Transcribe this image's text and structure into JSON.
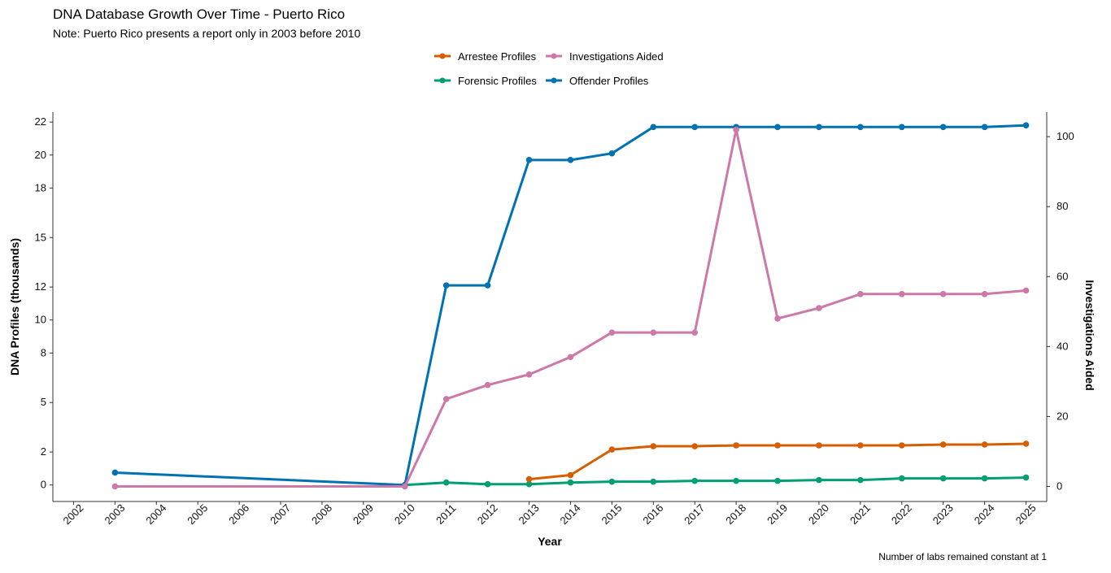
{
  "chart_data": {
    "type": "line",
    "title": "DNA Database Growth Over Time - Puerto Rico",
    "subtitle": "Note: Puerto Rico presents a report only in 2003 before 2010",
    "xlabel": "Year",
    "ylabel_left": "DNA Profiles (thousands)",
    "ylabel_right": "Investigations Aided",
    "caption": "Number of labs remained constant at 1",
    "x_ticks": [
      "2002",
      "2003",
      "2004",
      "2005",
      "2006",
      "2007",
      "2008",
      "2009",
      "2010",
      "2011",
      "2012",
      "2013",
      "2014",
      "2015",
      "2016",
      "2017",
      "2018",
      "2019",
      "2020",
      "2021",
      "2022",
      "2023",
      "2024",
      "2025"
    ],
    "y_left_ticks": [
      0,
      2,
      5,
      8,
      10,
      12,
      15,
      18,
      20,
      22
    ],
    "y_left_range": [
      -1.0,
      22.6
    ],
    "y_right_ticks": [
      0,
      20,
      40,
      60,
      80,
      100
    ],
    "y_right_range": [
      -4.3,
      107.0
    ],
    "legend_position": "top",
    "series": [
      {
        "name": "Arrestee Profiles",
        "axis": "left",
        "color": "#D55E00",
        "x": [
          2013,
          2014,
          2015,
          2016,
          2017,
          2018,
          2019,
          2020,
          2021,
          2022,
          2023,
          2024,
          2025
        ],
        "values": [
          0.35,
          0.6,
          2.15,
          2.35,
          2.35,
          2.4,
          2.4,
          2.4,
          2.4,
          2.4,
          2.45,
          2.45,
          2.5
        ]
      },
      {
        "name": "Forensic Profiles",
        "axis": "left",
        "color": "#009E73",
        "x": [
          2010,
          2011,
          2012,
          2013,
          2014,
          2015,
          2016,
          2017,
          2018,
          2019,
          2020,
          2021,
          2022,
          2023,
          2024,
          2025
        ],
        "values": [
          0.0,
          0.15,
          0.05,
          0.05,
          0.15,
          0.2,
          0.2,
          0.25,
          0.25,
          0.25,
          0.3,
          0.3,
          0.4,
          0.4,
          0.4,
          0.45
        ]
      },
      {
        "name": "Offender Profiles",
        "axis": "left",
        "color": "#0072B2",
        "x": [
          2003,
          2010,
          2011,
          2012,
          2013,
          2014,
          2015,
          2016,
          2017,
          2018,
          2019,
          2020,
          2021,
          2022,
          2023,
          2024,
          2025
        ],
        "values": [
          0.75,
          0.0,
          12.1,
          12.1,
          19.7,
          19.7,
          20.1,
          21.7,
          21.7,
          21.7,
          21.7,
          21.7,
          21.7,
          21.7,
          21.7,
          21.7,
          21.8
        ]
      },
      {
        "name": "Investigations Aided",
        "axis": "right",
        "color": "#CC79A7",
        "x": [
          2003,
          2010,
          2011,
          2012,
          2013,
          2014,
          2015,
          2016,
          2017,
          2018,
          2019,
          2020,
          2021,
          2022,
          2023,
          2024,
          2025
        ],
        "values": [
          0,
          0,
          25,
          29,
          32,
          37,
          44,
          44,
          44,
          102,
          48,
          51,
          55,
          55,
          55,
          55,
          56
        ]
      }
    ],
    "legend_order": [
      "Arrestee Profiles",
      "Investigations Aided",
      "Forensic Profiles",
      "Offender Profiles"
    ]
  }
}
